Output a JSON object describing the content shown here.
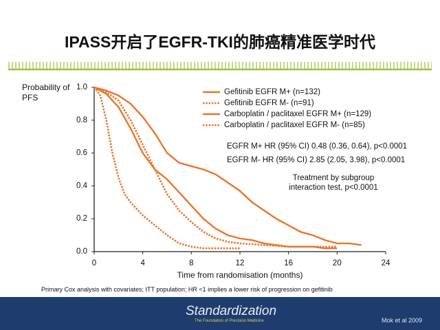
{
  "chart_data": {
    "type": "line",
    "title": "IPASS开启了EGFR-TKI的肺癌精准医学时代",
    "ylabel": "Probability of PFS",
    "xlabel": "Time from randomisation (months)",
    "xlim": [
      0,
      24
    ],
    "xticks": [
      0,
      4,
      8,
      12,
      16,
      20,
      24
    ],
    "ylim": [
      0,
      1
    ],
    "yticks": [
      {
        "value": 0,
        "label": "0.0"
      },
      0.2,
      0.4,
      0.6,
      0.8,
      {
        "value": 1,
        "label": "1.0"
      }
    ],
    "series": [
      {
        "name": "Gefitinib EGFR M+ (n=132)",
        "color": "#e8762b",
        "line_style": "solid",
        "x": [
          0,
          1,
          2,
          3,
          4,
          5,
          6,
          7,
          8,
          9,
          10,
          11,
          12,
          13,
          14,
          15,
          16,
          17,
          18,
          19,
          20,
          21,
          22
        ],
        "values": [
          1.0,
          0.98,
          0.95,
          0.9,
          0.82,
          0.72,
          0.6,
          0.54,
          0.52,
          0.5,
          0.47,
          0.42,
          0.37,
          0.3,
          0.25,
          0.2,
          0.16,
          0.12,
          0.1,
          0.07,
          0.05,
          0.05,
          0.04
        ]
      },
      {
        "name": "Gefitinib EGFR M- (n=91)",
        "color": "#e8762b",
        "line_style": "dotted",
        "x": [
          0,
          0.5,
          1,
          1.5,
          2,
          2.5,
          3,
          4,
          5,
          6,
          7,
          8,
          9,
          10,
          12
        ],
        "values": [
          1.0,
          0.95,
          0.8,
          0.6,
          0.45,
          0.35,
          0.3,
          0.22,
          0.16,
          0.1,
          0.05,
          0.03,
          0.02,
          0.02,
          0.02
        ]
      },
      {
        "name": "Carboplatin / paclitaxel EGFR M+ (n=129)",
        "color": "#e8762b",
        "line_style": "solid",
        "x": [
          0,
          1,
          2,
          3,
          4,
          5,
          6,
          7,
          8,
          9,
          10,
          11,
          12,
          13,
          14,
          15,
          16,
          17,
          18,
          19,
          20
        ],
        "values": [
          1.0,
          0.96,
          0.88,
          0.75,
          0.6,
          0.5,
          0.44,
          0.36,
          0.28,
          0.2,
          0.14,
          0.1,
          0.08,
          0.07,
          0.05,
          0.04,
          0.03,
          0.03,
          0.03,
          0.02,
          0.02
        ]
      },
      {
        "name": "Carboplatin / paclitaxel EGFR M- (n=85)",
        "color": "#e8762b",
        "line_style": "dotted",
        "x": [
          0,
          1,
          2,
          3,
          4,
          5,
          6,
          7,
          8,
          9,
          10,
          11,
          12,
          14,
          16,
          18,
          20
        ],
        "values": [
          1.0,
          0.97,
          0.92,
          0.8,
          0.65,
          0.5,
          0.35,
          0.25,
          0.18,
          0.12,
          0.08,
          0.06,
          0.05,
          0.04,
          0.03,
          0.03,
          0.03
        ]
      }
    ],
    "annotations": [
      "EGFR M+ HR (95% CI) 0.48 (0.36, 0.64), p<0.0001",
      "EGFR M- HR (95% CI) 2.85 (2.05, 3.98), p<0.0001",
      "Treatment by subgroup interaction test, p<0.0001"
    ],
    "footnote": "Primary Cox analysis with covariates; ITT population; HR <1 implies a lower risk of progression on gefitinib"
  },
  "footer": {
    "logo": "Standardization",
    "tagline": "The Foundation of Precision Medicine",
    "citation": "Mok et al 2009"
  }
}
